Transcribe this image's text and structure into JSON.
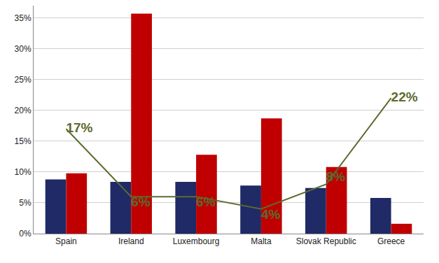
{
  "chart_data": {
    "type": "bar",
    "categories": [
      "Spain",
      "Ireland",
      "Luxembourg",
      "Malta",
      "Slovak Republic",
      "Greece"
    ],
    "series": [
      {
        "color": "#1f2a66",
        "values": [
          8.8,
          8.4,
          8.4,
          7.8,
          7.4,
          5.8
        ]
      },
      {
        "color": "#c00000",
        "values": [
          9.8,
          35.7,
          12.8,
          18.7,
          10.8,
          1.6
        ]
      },
      {
        "type": "line",
        "color": "#5b6b2f",
        "values": [
          17,
          6,
          6,
          4,
          8,
          22
        ],
        "value_labels": [
          "17%",
          "6%",
          "6%",
          "4%",
          "8%",
          "22%"
        ]
      }
    ],
    "ylim": [
      0,
      37
    ],
    "yticks": [
      {
        "value": 0,
        "label": "0%"
      },
      {
        "value": 5,
        "label": "5%"
      },
      {
        "value": 10,
        "label": "10%"
      },
      {
        "value": 15,
        "label": "15%"
      },
      {
        "value": 20,
        "label": "20%"
      },
      {
        "value": 25,
        "label": "25%"
      },
      {
        "value": 30,
        "label": "30%"
      },
      {
        "value": 35,
        "label": "35%"
      }
    ],
    "grid": true,
    "data_labels": true
  }
}
